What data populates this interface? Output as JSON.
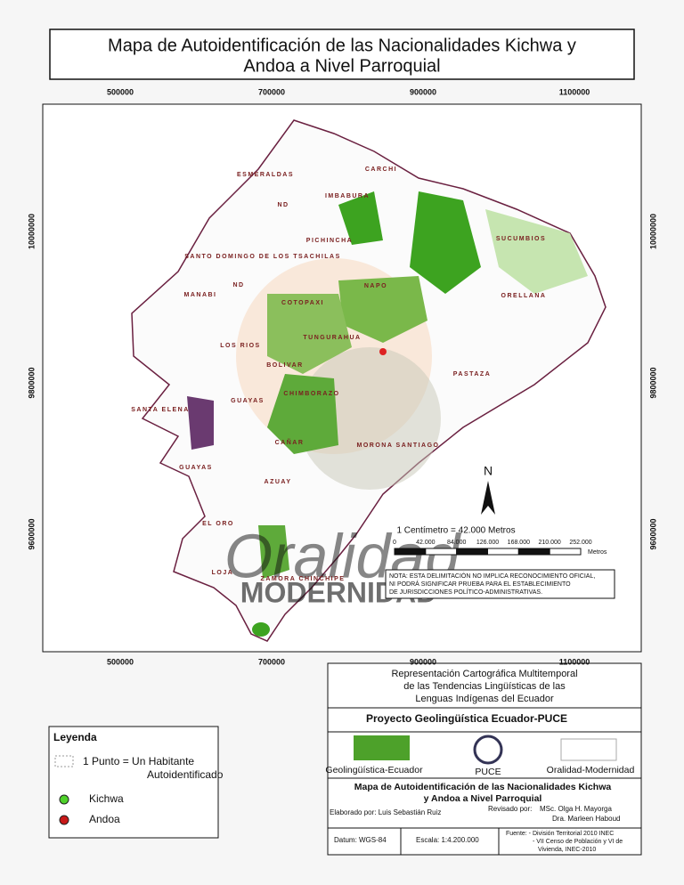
{
  "title": {
    "lines": [
      "Mapa de Autoidentificación de las Nacionalidades Kichwa y",
      "Andoa a Nivel Parroquial"
    ]
  },
  "map": {
    "x_ticks": [
      500000,
      700000,
      900000,
      1100000
    ],
    "y_ticks": [
      10000000,
      9800000,
      9600000
    ],
    "provinces": [
      "CARCHI",
      "ESMERALDAS",
      "IMBABURA",
      "ND",
      "SUCUMBIOS",
      "PICHINCHA",
      "SANTO DOMINGO DE LOS TSACHILAS",
      "ND",
      "MANABI",
      "NAPO",
      "ORELLANA",
      "COTOPAXI",
      "TUNGURAHUA",
      "LOS RIOS",
      "BOLIVAR",
      "PASTAZA",
      "CHIMBORAZO",
      "SANTA ELENA",
      "GUAYAS",
      "CAÑAR",
      "MORONA SANTIAGO",
      "GUAYAS",
      "AZUAY",
      "EL ORO",
      "LOJA",
      "ZAMORA CHINCHIPE"
    ],
    "north": "N",
    "scale": {
      "caption": "1 Centímetro = 42.000 Metros",
      "labels": [
        "0",
        "42.000",
        "84.000",
        "126.000",
        "168.000",
        "210.000",
        "252.000"
      ],
      "unit": "Metros"
    },
    "note": [
      "NOTA: ESTA DELIMITACIÓN NO IMPLICA RECONOCIMIENTO OFICIAL,",
      "NI PODRÁ SIGNIFICAR PRUEBA PARA EL ESTABLECIMIENTO",
      "DE JURISDICCIONES POLÍTICO-ADMINISTRATIVAS."
    ],
    "watermark": [
      "Oralidad",
      "MODERNIDAD"
    ]
  },
  "legend": {
    "title": "Leyenda",
    "dot_label": [
      "1 Punto = Un Habitante",
      "Autoidentificado"
    ],
    "items": [
      "Kichwa",
      "Andoa"
    ]
  },
  "info": {
    "heading": [
      "Representación Cartográfica Multitemporal",
      "de las Tendencias Lingüísticas de las",
      "Lenguas Indígenas del Ecuador"
    ],
    "project": "Proyecto  Geolingüística Ecuador-PUCE",
    "logos": [
      "Geolingüística-Ecuador",
      "PUCE",
      "Oralidad-Modernidad"
    ],
    "map_title": [
      "Mapa de Autoidentificación de las Nacionalidades Kichwa",
      "y Andoa a Nivel Parroquial"
    ],
    "author": "Elaborado por: Luis Sebastián Ruiz",
    "reviewed_label": "Revisado por:",
    "reviewers": [
      "MSc. Olga H. Mayorga",
      "Dra. Marleen Haboud"
    ],
    "datum": "Datum: WGS-84",
    "scale": "Escala: 1:4.200.000",
    "source": [
      "Fuente: - División Territorial 2010 INEC",
      "- VII Censo de Población y VI de",
      "Vivienda, INEC-2010"
    ]
  }
}
